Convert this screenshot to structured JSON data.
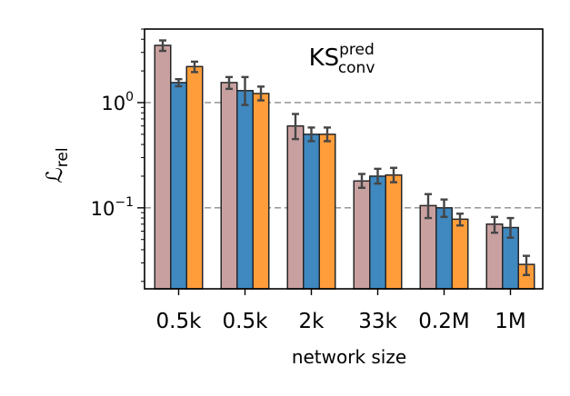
{
  "chart_data": {
    "type": "bar",
    "title": "KS",
    "title_superscript": "pred",
    "title_subscript": "conv",
    "xlabel": "network size",
    "ylabel": "ℒ",
    "ylabel_subscript": "rel",
    "yscale": "log",
    "ylim": [
      0.017,
      5.0
    ],
    "grid": "horizontal dashed at 10^0 and 10^-1",
    "categories": [
      "0.5k",
      "0.5k",
      "2k",
      "33k",
      "0.2M",
      "1M"
    ],
    "y_ticks": [
      {
        "value": 1.0,
        "base": "10",
        "exp": "0"
      },
      {
        "value": 0.1,
        "base": "10",
        "exp": "−1"
      }
    ],
    "series": [
      {
        "color": "#c9a0a0",
        "values": [
          3.5,
          1.55,
          0.6,
          0.18,
          0.105,
          0.07
        ],
        "err_low": [
          0.4,
          0.2,
          0.15,
          0.025,
          0.025,
          0.012
        ],
        "err_high": [
          0.4,
          0.2,
          0.18,
          0.03,
          0.03,
          0.012
        ]
      },
      {
        "color": "#3f88c0",
        "values": [
          1.55,
          1.3,
          0.5,
          0.2,
          0.1,
          0.065
        ],
        "err_low": [
          0.12,
          0.35,
          0.07,
          0.03,
          0.018,
          0.013
        ],
        "err_high": [
          0.12,
          0.45,
          0.08,
          0.035,
          0.02,
          0.015
        ]
      },
      {
        "color": "#ff9d3a",
        "values": [
          2.2,
          1.22,
          0.5,
          0.205,
          0.078,
          0.029
        ],
        "err_low": [
          0.25,
          0.17,
          0.07,
          0.03,
          0.01,
          0.006
        ],
        "err_high": [
          0.25,
          0.2,
          0.08,
          0.035,
          0.01,
          0.006
        ]
      }
    ]
  }
}
